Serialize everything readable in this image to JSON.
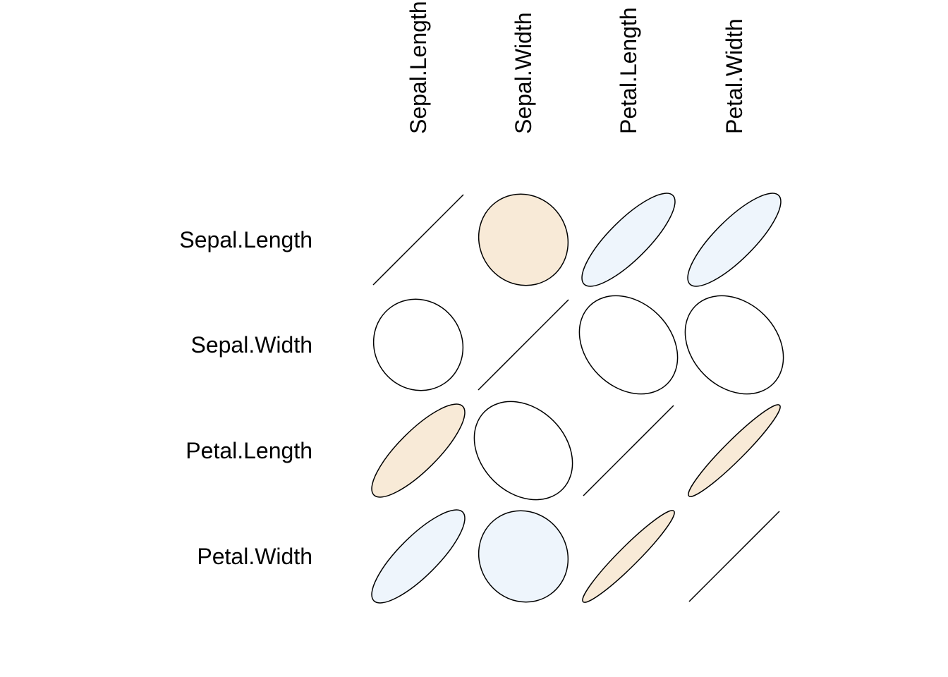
{
  "chart_data": {
    "type": "heatmap",
    "title": "",
    "row_labels": [
      "Sepal.Length",
      "Sepal.Width",
      "Petal.Length",
      "Petal.Width"
    ],
    "column_labels": [
      "Sepal.Length",
      "Sepal.Width",
      "Petal.Length",
      "Petal.Width"
    ],
    "cells": [
      [
        {
          "shape": "line",
          "direction": "up",
          "fill": "none"
        },
        {
          "shape": "ellipse",
          "slope": "none",
          "fill": "#F8EAD7"
        },
        {
          "shape": "ellipse",
          "slope": "up",
          "fill": "#EEF5FC"
        },
        {
          "shape": "ellipse",
          "slope": "up",
          "fill": "#EEF5FC"
        }
      ],
      [
        {
          "shape": "ellipse",
          "slope": "none",
          "fill": "#FFFFFF"
        },
        {
          "shape": "line",
          "direction": "up",
          "fill": "none"
        },
        {
          "shape": "ellipse",
          "slope": "down",
          "fill": "#FFFFFF"
        },
        {
          "shape": "ellipse",
          "slope": "down",
          "fill": "#FFFFFF"
        }
      ],
      [
        {
          "shape": "ellipse",
          "slope": "up",
          "fill": "#F8EAD7"
        },
        {
          "shape": "ellipse",
          "slope": "down",
          "fill": "#FFFFFF"
        },
        {
          "shape": "line",
          "direction": "up",
          "fill": "none"
        },
        {
          "shape": "ellipse",
          "slope": "up",
          "fill": "#F8EAD7"
        }
      ],
      [
        {
          "shape": "ellipse",
          "slope": "up",
          "fill": "#EEF5FC"
        },
        {
          "shape": "ellipse",
          "slope": "none",
          "fill": "#EEF5FC"
        },
        {
          "shape": "ellipse",
          "slope": "up",
          "fill": "#F8EAD7"
        },
        {
          "shape": "line",
          "direction": "up",
          "fill": "none"
        }
      ]
    ],
    "legend": "none",
    "grid": false
  }
}
